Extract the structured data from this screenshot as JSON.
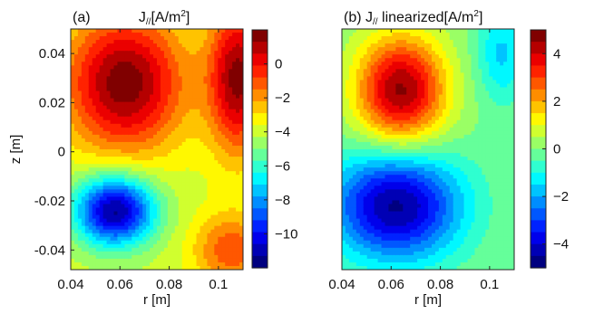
{
  "chart_data": [
    {
      "type": "heatmap",
      "panel_label": "(a)",
      "title_prefix": "J",
      "title_sub": "//",
      "title_unit": "[A/m",
      "title_exp": "2",
      "title_close": "]",
      "xlabel": "r [m]",
      "ylabel": "z [m]",
      "xlim": [
        0.04,
        0.11
      ],
      "ylim": [
        -0.048,
        0.05
      ],
      "x_ticks": [
        0.04,
        0.06,
        0.08,
        0.1
      ],
      "x_tick_labels": [
        "0.04",
        "0.06",
        "0.08",
        "0.1"
      ],
      "y_ticks": [
        0.04,
        0.02,
        0,
        -0.02,
        -0.04
      ],
      "y_tick_labels": [
        "0.04",
        "0.02",
        "0",
        "-0.02",
        "-0.04"
      ],
      "clim": [
        -12,
        2
      ],
      "colorbar_ticks": [
        0,
        -2,
        -4,
        -6,
        -8,
        -10
      ],
      "colorbar_tick_labels": [
        "0",
        "−2",
        "−4",
        "−6",
        "−8",
        "−10"
      ],
      "colormap": "jet",
      "levels": 20,
      "field_features": [
        {
          "kind": "positive-lobe",
          "r": 0.062,
          "z": 0.028,
          "peak": 1.8
        },
        {
          "kind": "negative-lobe",
          "r": 0.058,
          "z": -0.024,
          "peak": -11.5
        },
        {
          "kind": "background",
          "value": -4
        }
      ]
    },
    {
      "type": "heatmap",
      "panel_label": "(b)",
      "title_prefix": "J",
      "title_sub": "//",
      "title_unit": " linearized[A/m",
      "title_exp": "2",
      "title_close": "]",
      "xlabel": "r [m]",
      "ylabel": "",
      "xlim": [
        0.04,
        0.11
      ],
      "ylim": [
        -0.048,
        0.05
      ],
      "x_ticks": [
        0.04,
        0.06,
        0.08,
        0.1
      ],
      "x_tick_labels": [
        "0.04",
        "0.06",
        "0.08",
        "0.1"
      ],
      "y_ticks": [],
      "y_tick_labels": [],
      "clim": [
        -5,
        5
      ],
      "colorbar_ticks": [
        4,
        2,
        0,
        -2,
        -4
      ],
      "colorbar_tick_labels": [
        "4",
        "2",
        "0",
        "−2",
        "−4"
      ],
      "colormap": "jet",
      "levels": 20,
      "field_features": [
        {
          "kind": "positive-lobe",
          "r": 0.064,
          "z": 0.025,
          "peak": 4.6
        },
        {
          "kind": "negative-lobe",
          "r": 0.062,
          "z": -0.022,
          "peak": -4.6
        },
        {
          "kind": "background",
          "value": 0
        }
      ]
    }
  ]
}
